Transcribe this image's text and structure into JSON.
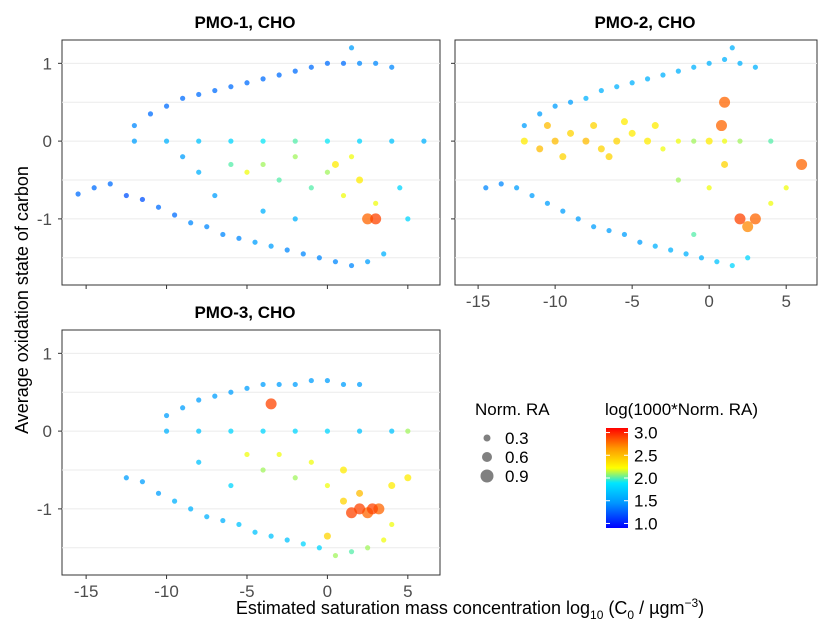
{
  "figure": {
    "ylabel": "Average oxidation state of carbon",
    "xlabel_prefix": "Estimated saturation mass concentration log",
    "xlabel_sub": "10",
    "xlabel_mid": " (C",
    "xlabel_sub2": "0",
    "xlabel_unit": " / µgm",
    "xlabel_sup": "−3",
    "xlabel_close": ")"
  },
  "legend": {
    "size_title": "Norm. RA",
    "size_items": [
      "0.3",
      "0.6",
      "0.9"
    ],
    "color_title": "log(1000*Norm. RA)",
    "color_ticks": [
      "3.0",
      "2.5",
      "2.0",
      "1.5",
      "1.0"
    ],
    "color_range": [
      0.9,
      3.1
    ],
    "point_color": "#808080"
  },
  "axes": {
    "x_ticks": [
      "-15",
      "-10",
      "-5",
      "0",
      "5"
    ],
    "y_ticks": [
      "1",
      "0",
      "-1"
    ],
    "x_tick_values": [
      -15,
      -10,
      -5,
      0,
      5
    ],
    "y_tick_values": [
      1,
      0,
      -1
    ],
    "xlim": [
      -16.5,
      7
    ],
    "ylim": [
      -1.85,
      1.3
    ]
  },
  "chart_data": [
    {
      "type": "scatter",
      "title": "PMO-1, CHO",
      "xlabel": "Estimated saturation mass concentration log10 (C0 / µgm−3)",
      "ylabel": "Average oxidation state of carbon",
      "xlim": [
        -16.5,
        7
      ],
      "ylim": [
        -1.85,
        1.3
      ],
      "x_ticks_shown": false,
      "points": [
        {
          "x": -15.5,
          "y": -0.68,
          "c": 1.3
        },
        {
          "x": -14.5,
          "y": -0.6,
          "c": 1.3
        },
        {
          "x": -13.5,
          "y": -0.55,
          "c": 1.3
        },
        {
          "x": -12.5,
          "y": -0.7,
          "c": 1.2
        },
        {
          "x": -11.5,
          "y": -0.75,
          "c": 1.2
        },
        {
          "x": -10.5,
          "y": -0.85,
          "c": 1.3
        },
        {
          "x": -9.5,
          "y": -0.95,
          "c": 1.3
        },
        {
          "x": -8.5,
          "y": -1.05,
          "c": 1.4
        },
        {
          "x": -7.5,
          "y": -1.1,
          "c": 1.4
        },
        {
          "x": -6.5,
          "y": -1.2,
          "c": 1.4
        },
        {
          "x": -5.5,
          "y": -1.25,
          "c": 1.4
        },
        {
          "x": -4.5,
          "y": -1.3,
          "c": 1.5
        },
        {
          "x": -3.5,
          "y": -1.35,
          "c": 1.5
        },
        {
          "x": -2.5,
          "y": -1.4,
          "c": 1.4
        },
        {
          "x": -1.5,
          "y": -1.45,
          "c": 1.4
        },
        {
          "x": -0.5,
          "y": -1.5,
          "c": 1.4
        },
        {
          "x": 0.5,
          "y": -1.55,
          "c": 1.4
        },
        {
          "x": 1.5,
          "y": -1.6,
          "c": 1.4
        },
        {
          "x": 2.5,
          "y": -1.55,
          "c": 1.5
        },
        {
          "x": 3.5,
          "y": -1.45,
          "c": 1.6
        },
        {
          "x": -12.0,
          "y": 0.2,
          "c": 1.4
        },
        {
          "x": -11.0,
          "y": 0.35,
          "c": 1.3
        },
        {
          "x": -10.0,
          "y": 0.45,
          "c": 1.3
        },
        {
          "x": -9.0,
          "y": 0.55,
          "c": 1.3
        },
        {
          "x": -8.0,
          "y": 0.6,
          "c": 1.3
        },
        {
          "x": -7.0,
          "y": 0.65,
          "c": 1.3
        },
        {
          "x": -6.0,
          "y": 0.7,
          "c": 1.3
        },
        {
          "x": -5.0,
          "y": 0.75,
          "c": 1.3
        },
        {
          "x": -4.0,
          "y": 0.8,
          "c": 1.3
        },
        {
          "x": -3.0,
          "y": 0.85,
          "c": 1.3
        },
        {
          "x": -2.0,
          "y": 0.9,
          "c": 1.3
        },
        {
          "x": -1.0,
          "y": 0.95,
          "c": 1.3
        },
        {
          "x": 0.0,
          "y": 1.0,
          "c": 1.3
        },
        {
          "x": 1.0,
          "y": 1.0,
          "c": 1.3
        },
        {
          "x": 2.0,
          "y": 1.0,
          "c": 1.4
        },
        {
          "x": 3.0,
          "y": 1.0,
          "c": 1.4
        },
        {
          "x": 4.0,
          "y": 0.95,
          "c": 1.4
        },
        {
          "x": 1.5,
          "y": 1.2,
          "c": 1.5
        },
        {
          "x": -12.0,
          "y": 0.0,
          "c": 1.5
        },
        {
          "x": -10.0,
          "y": 0.0,
          "c": 1.6
        },
        {
          "x": -8.0,
          "y": 0.0,
          "c": 1.7
        },
        {
          "x": -6.0,
          "y": 0.0,
          "c": 1.8
        },
        {
          "x": -4.0,
          "y": 0.0,
          "c": 1.9
        },
        {
          "x": -2.0,
          "y": 0.0,
          "c": 2.0
        },
        {
          "x": 0.0,
          "y": 0.0,
          "c": 1.9
        },
        {
          "x": 2.0,
          "y": 0.0,
          "c": 1.8
        },
        {
          "x": 4.0,
          "y": 0.0,
          "c": 1.7
        },
        {
          "x": 6.0,
          "y": 0.0,
          "c": 1.6
        },
        {
          "x": -6.0,
          "y": -0.3,
          "c": 2.0
        },
        {
          "x": -5.0,
          "y": -0.4,
          "c": 2.2
        },
        {
          "x": -4.0,
          "y": -0.3,
          "c": 2.1
        },
        {
          "x": -3.0,
          "y": -0.5,
          "c": 2.0
        },
        {
          "x": -2.0,
          "y": -0.2,
          "c": 2.1
        },
        {
          "x": -1.0,
          "y": -0.6,
          "c": 2.0
        },
        {
          "x": 0.0,
          "y": -0.4,
          "c": 2.1
        },
        {
          "x": 1.0,
          "y": -0.7,
          "c": 2.2
        },
        {
          "x": 2.0,
          "y": -0.5,
          "c": 2.3
        },
        {
          "x": 3.0,
          "y": -0.8,
          "c": 2.2
        },
        {
          "x": 1.5,
          "y": -0.2,
          "c": 2.2
        },
        {
          "x": 0.5,
          "y": -0.3,
          "c": 2.3
        },
        {
          "x": 2.5,
          "y": -1.0,
          "c": 2.8
        },
        {
          "x": 3.0,
          "y": -1.0,
          "c": 2.9
        },
        {
          "x": -8.0,
          "y": -0.4,
          "c": 1.6
        },
        {
          "x": -7.0,
          "y": -0.7,
          "c": 1.5
        },
        {
          "x": -9.0,
          "y": -0.2,
          "c": 1.5
        },
        {
          "x": -4.0,
          "y": -0.9,
          "c": 1.6
        },
        {
          "x": -2.0,
          "y": -1.0,
          "c": 1.6
        },
        {
          "x": 4.5,
          "y": -0.6,
          "c": 1.8
        },
        {
          "x": 5.0,
          "y": -1.0,
          "c": 1.8
        }
      ]
    },
    {
      "type": "scatter",
      "title": "PMO-2, CHO",
      "xlabel": "Estimated saturation mass concentration log10 (C0 / µgm−3)",
      "ylabel": "Average oxidation state of carbon",
      "xlim": [
        -16.5,
        7
      ],
      "ylim": [
        -1.85,
        1.3
      ],
      "x_ticks_shown": true,
      "points": [
        {
          "x": -14.5,
          "y": -0.6,
          "c": 1.4
        },
        {
          "x": -13.5,
          "y": -0.55,
          "c": 1.4
        },
        {
          "x": -12.5,
          "y": -0.6,
          "c": 1.5
        },
        {
          "x": -11.5,
          "y": -0.7,
          "c": 1.5
        },
        {
          "x": -10.5,
          "y": -0.8,
          "c": 1.5
        },
        {
          "x": -9.5,
          "y": -0.9,
          "c": 1.5
        },
        {
          "x": -8.5,
          "y": -1.0,
          "c": 1.5
        },
        {
          "x": -7.5,
          "y": -1.1,
          "c": 1.5
        },
        {
          "x": -6.5,
          "y": -1.15,
          "c": 1.5
        },
        {
          "x": -5.5,
          "y": -1.2,
          "c": 1.5
        },
        {
          "x": -4.5,
          "y": -1.3,
          "c": 1.5
        },
        {
          "x": -3.5,
          "y": -1.35,
          "c": 1.6
        },
        {
          "x": -2.5,
          "y": -1.4,
          "c": 1.6
        },
        {
          "x": -1.5,
          "y": -1.45,
          "c": 1.6
        },
        {
          "x": -0.5,
          "y": -1.5,
          "c": 1.6
        },
        {
          "x": 0.5,
          "y": -1.55,
          "c": 1.7
        },
        {
          "x": 1.5,
          "y": -1.6,
          "c": 1.8
        },
        {
          "x": 2.5,
          "y": -1.5,
          "c": 1.8
        },
        {
          "x": -12.0,
          "y": 0.2,
          "c": 1.5
        },
        {
          "x": -11.0,
          "y": 0.35,
          "c": 1.5
        },
        {
          "x": -10.0,
          "y": 0.45,
          "c": 1.5
        },
        {
          "x": -9.0,
          "y": 0.5,
          "c": 1.5
        },
        {
          "x": -8.0,
          "y": 0.55,
          "c": 1.6
        },
        {
          "x": -7.0,
          "y": 0.65,
          "c": 1.6
        },
        {
          "x": -6.0,
          "y": 0.7,
          "c": 1.6
        },
        {
          "x": -5.0,
          "y": 0.75,
          "c": 1.6
        },
        {
          "x": -4.0,
          "y": 0.8,
          "c": 1.6
        },
        {
          "x": -3.0,
          "y": 0.85,
          "c": 1.6
        },
        {
          "x": -2.0,
          "y": 0.9,
          "c": 1.6
        },
        {
          "x": -1.0,
          "y": 0.95,
          "c": 1.6
        },
        {
          "x": 0.0,
          "y": 1.0,
          "c": 1.6
        },
        {
          "x": 1.0,
          "y": 1.05,
          "c": 1.6
        },
        {
          "x": 2.0,
          "y": 1.0,
          "c": 1.6
        },
        {
          "x": 3.0,
          "y": 0.95,
          "c": 1.6
        },
        {
          "x": 1.5,
          "y": 1.2,
          "c": 1.6
        },
        {
          "x": -12.0,
          "y": 0.0,
          "c": 2.3
        },
        {
          "x": -11.0,
          "y": -0.1,
          "c": 2.5
        },
        {
          "x": -10.0,
          "y": 0.0,
          "c": 2.5
        },
        {
          "x": -9.0,
          "y": 0.1,
          "c": 2.4
        },
        {
          "x": -8.0,
          "y": 0.0,
          "c": 2.5
        },
        {
          "x": -7.0,
          "y": -0.1,
          "c": 2.4
        },
        {
          "x": -6.0,
          "y": 0.0,
          "c": 2.4
        },
        {
          "x": -5.0,
          "y": 0.1,
          "c": 2.3
        },
        {
          "x": -4.0,
          "y": 0.0,
          "c": 2.3
        },
        {
          "x": -3.0,
          "y": -0.1,
          "c": 2.2
        },
        {
          "x": -2.0,
          "y": 0.0,
          "c": 2.2
        },
        {
          "x": -1.0,
          "y": 0.0,
          "c": 2.1
        },
        {
          "x": 0.0,
          "y": 0.0,
          "c": 2.3
        },
        {
          "x": 1.0,
          "y": 0.0,
          "c": 2.2
        },
        {
          "x": 2.0,
          "y": 0.0,
          "c": 2.1
        },
        {
          "x": 4.0,
          "y": 0.0,
          "c": 2.0
        },
        {
          "x": 6.0,
          "y": -0.3,
          "c": 2.8
        },
        {
          "x": -10.5,
          "y": 0.2,
          "c": 2.5
        },
        {
          "x": -9.5,
          "y": -0.2,
          "c": 2.4
        },
        {
          "x": -7.5,
          "y": 0.2,
          "c": 2.4
        },
        {
          "x": -6.5,
          "y": -0.2,
          "c": 2.4
        },
        {
          "x": -5.5,
          "y": 0.25,
          "c": 2.3
        },
        {
          "x": -3.5,
          "y": 0.2,
          "c": 2.3
        },
        {
          "x": 1.0,
          "y": 0.5,
          "c": 2.8
        },
        {
          "x": 0.8,
          "y": 0.2,
          "c": 2.8
        },
        {
          "x": 1.0,
          "y": -0.3,
          "c": 2.4
        },
        {
          "x": 2.0,
          "y": -1.0,
          "c": 2.9
        },
        {
          "x": 3.0,
          "y": -1.0,
          "c": 2.8
        },
        {
          "x": 2.5,
          "y": -1.1,
          "c": 2.7
        },
        {
          "x": 0.0,
          "y": -0.6,
          "c": 2.2
        },
        {
          "x": -2.0,
          "y": -0.5,
          "c": 2.1
        },
        {
          "x": 4.0,
          "y": -0.8,
          "c": 2.2
        },
        {
          "x": 5.0,
          "y": -0.6,
          "c": 2.2
        },
        {
          "x": -1.0,
          "y": -1.2,
          "c": 2.0
        }
      ]
    },
    {
      "type": "scatter",
      "title": "PMO-3, CHO",
      "xlabel": "Estimated saturation mass concentration log10 (C0 / µgm−3)",
      "ylabel": "Average oxidation state of carbon",
      "xlim": [
        -16.5,
        7
      ],
      "ylim": [
        -1.85,
        1.3
      ],
      "x_ticks_shown": true,
      "points": [
        {
          "x": -12.5,
          "y": -0.6,
          "c": 1.5
        },
        {
          "x": -11.5,
          "y": -0.65,
          "c": 1.5
        },
        {
          "x": -10.5,
          "y": -0.8,
          "c": 1.5
        },
        {
          "x": -9.5,
          "y": -0.9,
          "c": 1.6
        },
        {
          "x": -8.5,
          "y": -1.0,
          "c": 1.6
        },
        {
          "x": -7.5,
          "y": -1.1,
          "c": 1.6
        },
        {
          "x": -6.5,
          "y": -1.15,
          "c": 1.6
        },
        {
          "x": -5.5,
          "y": -1.2,
          "c": 1.7
        },
        {
          "x": -4.5,
          "y": -1.3,
          "c": 1.7
        },
        {
          "x": -3.5,
          "y": -1.35,
          "c": 1.7
        },
        {
          "x": -2.5,
          "y": -1.4,
          "c": 1.7
        },
        {
          "x": -1.5,
          "y": -1.45,
          "c": 1.8
        },
        {
          "x": -0.5,
          "y": -1.5,
          "c": 1.8
        },
        {
          "x": 0.5,
          "y": -1.6,
          "c": 2.1
        },
        {
          "x": 1.5,
          "y": -1.55,
          "c": 2.0
        },
        {
          "x": 2.5,
          "y": -1.5,
          "c": 2.1
        },
        {
          "x": 3.5,
          "y": -1.4,
          "c": 2.2
        },
        {
          "x": -10.0,
          "y": 0.2,
          "c": 1.5
        },
        {
          "x": -9.0,
          "y": 0.3,
          "c": 1.5
        },
        {
          "x": -8.0,
          "y": 0.4,
          "c": 1.5
        },
        {
          "x": -7.0,
          "y": 0.45,
          "c": 1.5
        },
        {
          "x": -6.0,
          "y": 0.5,
          "c": 1.5
        },
        {
          "x": -5.0,
          "y": 0.55,
          "c": 1.5
        },
        {
          "x": -4.0,
          "y": 0.6,
          "c": 1.5
        },
        {
          "x": -3.0,
          "y": 0.6,
          "c": 1.5
        },
        {
          "x": -2.0,
          "y": 0.6,
          "c": 1.5
        },
        {
          "x": -1.0,
          "y": 0.65,
          "c": 1.5
        },
        {
          "x": 0.0,
          "y": 0.65,
          "c": 1.5
        },
        {
          "x": 1.0,
          "y": 0.6,
          "c": 1.5
        },
        {
          "x": 2.0,
          "y": 0.6,
          "c": 1.5
        },
        {
          "x": -3.5,
          "y": 0.35,
          "c": 2.9
        },
        {
          "x": -10.0,
          "y": 0.0,
          "c": 1.6
        },
        {
          "x": -8.0,
          "y": 0.0,
          "c": 1.7
        },
        {
          "x": -6.0,
          "y": 0.0,
          "c": 1.8
        },
        {
          "x": -4.0,
          "y": 0.0,
          "c": 1.8
        },
        {
          "x": -2.0,
          "y": 0.0,
          "c": 1.8
        },
        {
          "x": 0.0,
          "y": 0.0,
          "c": 1.8
        },
        {
          "x": 2.0,
          "y": 0.0,
          "c": 1.7
        },
        {
          "x": 4.0,
          "y": 0.0,
          "c": 1.7
        },
        {
          "x": 5.0,
          "y": 0.0,
          "c": 2.1
        },
        {
          "x": -5.0,
          "y": -0.3,
          "c": 2.2
        },
        {
          "x": -4.0,
          "y": -0.5,
          "c": 2.1
        },
        {
          "x": -3.0,
          "y": -0.3,
          "c": 2.2
        },
        {
          "x": -2.0,
          "y": -0.6,
          "c": 2.1
        },
        {
          "x": -1.0,
          "y": -0.4,
          "c": 2.2
        },
        {
          "x": 0.0,
          "y": -0.7,
          "c": 2.2
        },
        {
          "x": 1.0,
          "y": -0.5,
          "c": 2.3
        },
        {
          "x": 1.0,
          "y": -0.9,
          "c": 2.4
        },
        {
          "x": 2.0,
          "y": -0.8,
          "c": 2.5
        },
        {
          "x": 1.5,
          "y": -1.05,
          "c": 2.9
        },
        {
          "x": 2.0,
          "y": -1.0,
          "c": 2.9
        },
        {
          "x": 2.8,
          "y": -1.0,
          "c": 2.9
        },
        {
          "x": 3.2,
          "y": -1.0,
          "c": 2.8
        },
        {
          "x": 2.5,
          "y": -1.05,
          "c": 2.8
        },
        {
          "x": 4.0,
          "y": -0.7,
          "c": 2.3
        },
        {
          "x": 5.0,
          "y": -0.6,
          "c": 2.3
        },
        {
          "x": -8.0,
          "y": -0.4,
          "c": 1.7
        },
        {
          "x": -6.0,
          "y": -0.7,
          "c": 1.8
        },
        {
          "x": 4.0,
          "y": -1.2,
          "c": 2.2
        },
        {
          "x": 0.0,
          "y": -1.35,
          "c": 2.4
        }
      ]
    }
  ]
}
